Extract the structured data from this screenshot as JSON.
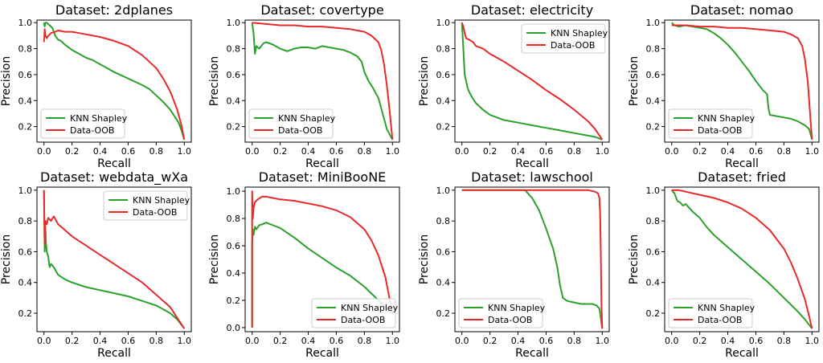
{
  "chart_data": [
    {
      "type": "line",
      "title": "Dataset: 2dplanes",
      "xlabel": "Recall",
      "ylabel": "Precision",
      "xlim": [
        -0.05,
        1.05
      ],
      "ylim": [
        0.08,
        1.02
      ],
      "xticks": [
        0.0,
        0.2,
        0.4,
        0.6,
        0.8,
        1.0
      ],
      "yticks": [
        0.2,
        0.4,
        0.6,
        0.8,
        1.0
      ],
      "legend_position": "lower-left",
      "grid": false,
      "series": [
        {
          "name": "KNN Shapley",
          "color": "#2ca02c",
          "x": [
            0.0,
            0.005,
            0.01,
            0.02,
            0.04,
            0.06,
            0.08,
            0.1,
            0.12,
            0.15,
            0.2,
            0.25,
            0.3,
            0.35,
            0.4,
            0.5,
            0.6,
            0.7,
            0.75,
            0.8,
            0.85,
            0.9,
            0.93,
            0.96,
            0.98,
            1.0
          ],
          "y": [
            1.0,
            0.97,
            1.0,
            1.0,
            0.98,
            0.96,
            0.9,
            0.87,
            0.86,
            0.83,
            0.79,
            0.76,
            0.73,
            0.71,
            0.68,
            0.62,
            0.57,
            0.52,
            0.49,
            0.44,
            0.39,
            0.33,
            0.28,
            0.23,
            0.17,
            0.1
          ]
        },
        {
          "name": "Data-OOB",
          "color": "#e8292a",
          "x": [
            0.0,
            0.005,
            0.01,
            0.02,
            0.03,
            0.05,
            0.08,
            0.1,
            0.15,
            0.2,
            0.25,
            0.3,
            0.4,
            0.5,
            0.6,
            0.7,
            0.8,
            0.85,
            0.9,
            0.95,
            0.98,
            1.0
          ],
          "y": [
            0.85,
            0.95,
            0.9,
            0.88,
            0.9,
            0.92,
            0.93,
            0.94,
            0.93,
            0.93,
            0.92,
            0.91,
            0.89,
            0.86,
            0.82,
            0.75,
            0.65,
            0.57,
            0.47,
            0.33,
            0.21,
            0.1
          ]
        }
      ]
    },
    {
      "type": "line",
      "title": "Dataset: covertype",
      "xlabel": "Recall",
      "ylabel": "Precision",
      "xlim": [
        -0.05,
        1.05
      ],
      "ylim": [
        0.08,
        1.02
      ],
      "xticks": [
        0.0,
        0.2,
        0.4,
        0.6,
        0.8,
        1.0
      ],
      "yticks": [
        0.2,
        0.4,
        0.6,
        0.8,
        1.0
      ],
      "legend_position": "lower-left",
      "grid": false,
      "series": [
        {
          "name": "KNN Shapley",
          "color": "#2ca02c",
          "x": [
            0.0,
            0.01,
            0.02,
            0.03,
            0.05,
            0.08,
            0.1,
            0.15,
            0.2,
            0.25,
            0.3,
            0.35,
            0.4,
            0.45,
            0.5,
            0.55,
            0.6,
            0.65,
            0.7,
            0.75,
            0.78,
            0.8,
            0.83,
            0.86,
            0.9,
            0.93,
            0.96,
            0.98,
            1.0
          ],
          "y": [
            1.0,
            0.92,
            0.76,
            0.82,
            0.8,
            0.84,
            0.85,
            0.83,
            0.8,
            0.78,
            0.8,
            0.81,
            0.81,
            0.8,
            0.82,
            0.81,
            0.8,
            0.79,
            0.77,
            0.74,
            0.7,
            0.62,
            0.55,
            0.5,
            0.42,
            0.3,
            0.18,
            0.14,
            0.1
          ]
        },
        {
          "name": "Data-OOB",
          "color": "#e8292a",
          "x": [
            0.0,
            0.1,
            0.2,
            0.3,
            0.4,
            0.5,
            0.6,
            0.7,
            0.8,
            0.85,
            0.9,
            0.92,
            0.94,
            0.96,
            0.98,
            1.0
          ],
          "y": [
            1.0,
            0.99,
            0.98,
            0.98,
            0.97,
            0.97,
            0.96,
            0.95,
            0.93,
            0.9,
            0.85,
            0.79,
            0.68,
            0.52,
            0.32,
            0.1
          ]
        }
      ]
    },
    {
      "type": "line",
      "title": "Dataset: electricity",
      "xlabel": "Recall",
      "ylabel": "Precision",
      "xlim": [
        -0.05,
        1.05
      ],
      "ylim": [
        0.08,
        1.02
      ],
      "xticks": [
        0.0,
        0.2,
        0.4,
        0.6,
        0.8,
        1.0
      ],
      "yticks": [
        0.2,
        0.4,
        0.6,
        0.8,
        1.0
      ],
      "legend_position": "upper-right",
      "grid": false,
      "series": [
        {
          "name": "KNN Shapley",
          "color": "#2ca02c",
          "x": [
            0.0,
            0.005,
            0.01,
            0.015,
            0.02,
            0.03,
            0.04,
            0.05,
            0.07,
            0.1,
            0.15,
            0.2,
            0.25,
            0.3,
            0.4,
            0.5,
            0.6,
            0.7,
            0.8,
            0.9,
            0.95,
            1.0
          ],
          "y": [
            1.0,
            0.9,
            0.8,
            0.7,
            0.6,
            0.55,
            0.5,
            0.47,
            0.43,
            0.38,
            0.33,
            0.29,
            0.27,
            0.25,
            0.23,
            0.21,
            0.19,
            0.17,
            0.15,
            0.13,
            0.12,
            0.1
          ]
        },
        {
          "name": "Data-OOB",
          "color": "#e8292a",
          "x": [
            0.0,
            0.01,
            0.02,
            0.03,
            0.05,
            0.08,
            0.1,
            0.15,
            0.2,
            0.3,
            0.4,
            0.5,
            0.6,
            0.7,
            0.8,
            0.9,
            0.95,
            1.0
          ],
          "y": [
            1.0,
            0.97,
            0.92,
            0.88,
            0.87,
            0.85,
            0.82,
            0.8,
            0.76,
            0.7,
            0.63,
            0.56,
            0.48,
            0.41,
            0.33,
            0.24,
            0.18,
            0.1
          ]
        }
      ]
    },
    {
      "type": "line",
      "title": "Dataset: nomao",
      "xlabel": "Recall",
      "ylabel": "Precision",
      "xlim": [
        -0.05,
        1.05
      ],
      "ylim": [
        0.08,
        1.02
      ],
      "xticks": [
        0.0,
        0.2,
        0.4,
        0.6,
        0.8,
        1.0
      ],
      "yticks": [
        0.2,
        0.4,
        0.6,
        0.8,
        1.0
      ],
      "legend_position": "lower-left",
      "grid": false,
      "series": [
        {
          "name": "KNN Shapley",
          "color": "#2ca02c",
          "x": [
            0.0,
            0.02,
            0.05,
            0.1,
            0.15,
            0.2,
            0.25,
            0.3,
            0.35,
            0.4,
            0.45,
            0.5,
            0.55,
            0.6,
            0.65,
            0.68,
            0.69,
            0.7,
            0.75,
            0.8,
            0.85,
            0.9,
            0.95,
            0.98,
            1.0
          ],
          "y": [
            1.0,
            0.98,
            0.97,
            0.98,
            0.97,
            0.96,
            0.95,
            0.92,
            0.88,
            0.83,
            0.77,
            0.7,
            0.63,
            0.55,
            0.48,
            0.45,
            0.34,
            0.29,
            0.28,
            0.27,
            0.26,
            0.24,
            0.21,
            0.18,
            0.1
          ]
        },
        {
          "name": "Data-OOB",
          "color": "#e8292a",
          "x": [
            0.0,
            0.05,
            0.1,
            0.2,
            0.3,
            0.4,
            0.5,
            0.6,
            0.7,
            0.8,
            0.85,
            0.9,
            0.93,
            0.95,
            0.97,
            0.98,
            0.99,
            1.0
          ],
          "y": [
            0.98,
            0.98,
            0.98,
            0.97,
            0.97,
            0.96,
            0.96,
            0.95,
            0.94,
            0.93,
            0.91,
            0.88,
            0.82,
            0.72,
            0.55,
            0.4,
            0.25,
            0.1
          ]
        }
      ]
    },
    {
      "type": "line",
      "title": "Dataset: webdata_wXa",
      "xlabel": "Recall",
      "ylabel": "Precision",
      "xlim": [
        -0.05,
        1.05
      ],
      "ylim": [
        0.08,
        1.02
      ],
      "xticks": [
        0.0,
        0.2,
        0.4,
        0.6,
        0.8,
        1.0
      ],
      "yticks": [
        0.2,
        0.4,
        0.6,
        0.8,
        1.0
      ],
      "legend_position": "upper-right",
      "grid": false,
      "series": [
        {
          "name": "KNN Shapley",
          "color": "#2ca02c",
          "x": [
            0.0,
            0.005,
            0.01,
            0.015,
            0.02,
            0.03,
            0.04,
            0.05,
            0.07,
            0.1,
            0.15,
            0.2,
            0.3,
            0.4,
            0.5,
            0.6,
            0.7,
            0.8,
            0.9,
            0.95,
            1.0
          ],
          "y": [
            1.0,
            0.6,
            0.75,
            0.65,
            0.6,
            0.57,
            0.5,
            0.52,
            0.5,
            0.45,
            0.42,
            0.4,
            0.37,
            0.35,
            0.33,
            0.31,
            0.28,
            0.25,
            0.2,
            0.16,
            0.1
          ]
        },
        {
          "name": "Data-OOB",
          "color": "#e8292a",
          "x": [
            0.0,
            0.005,
            0.01,
            0.02,
            0.03,
            0.05,
            0.07,
            0.1,
            0.15,
            0.2,
            0.3,
            0.4,
            0.5,
            0.6,
            0.7,
            0.8,
            0.9,
            0.95,
            1.0
          ],
          "y": [
            1.0,
            0.65,
            0.8,
            0.78,
            0.82,
            0.8,
            0.83,
            0.78,
            0.74,
            0.7,
            0.64,
            0.58,
            0.52,
            0.46,
            0.4,
            0.32,
            0.24,
            0.17,
            0.1
          ]
        }
      ]
    },
    {
      "type": "line",
      "title": "Dataset: MiniBooNE",
      "xlabel": "Recall",
      "ylabel": "Precision",
      "xlim": [
        -0.05,
        1.05
      ],
      "ylim": [
        -0.03,
        1.03
      ],
      "xticks": [
        0.0,
        0.2,
        0.4,
        0.6,
        0.8,
        1.0
      ],
      "yticks": [
        0.0,
        0.2,
        0.4,
        0.6,
        0.8,
        1.0
      ],
      "legend_position": "lower-right",
      "grid": false,
      "series": [
        {
          "name": "KNN Shapley",
          "color": "#2ca02c",
          "x": [
            0.0,
            0.0,
            0.005,
            0.01,
            0.02,
            0.03,
            0.05,
            0.08,
            0.1,
            0.15,
            0.2,
            0.3,
            0.4,
            0.5,
            0.6,
            0.7,
            0.8,
            0.9,
            1.0
          ],
          "y": [
            0.0,
            0.6,
            0.72,
            0.68,
            0.74,
            0.72,
            0.75,
            0.76,
            0.77,
            0.75,
            0.73,
            0.66,
            0.58,
            0.51,
            0.44,
            0.38,
            0.3,
            0.2,
            0.1
          ]
        },
        {
          "name": "Data-OOB",
          "color": "#e8292a",
          "x": [
            0.0,
            0.0,
            0.005,
            0.01,
            0.02,
            0.04,
            0.07,
            0.1,
            0.15,
            0.2,
            0.3,
            0.4,
            0.5,
            0.6,
            0.7,
            0.8,
            0.85,
            0.9,
            0.95,
            1.0
          ],
          "y": [
            0.0,
            1.0,
            0.8,
            0.88,
            0.92,
            0.94,
            0.96,
            0.96,
            0.95,
            0.94,
            0.93,
            0.91,
            0.89,
            0.86,
            0.81,
            0.72,
            0.64,
            0.53,
            0.37,
            0.1
          ]
        }
      ]
    },
    {
      "type": "line",
      "title": "Dataset: lawschool",
      "xlabel": "Recall",
      "ylabel": "Precision",
      "xlim": [
        -0.05,
        1.05
      ],
      "ylim": [
        0.08,
        1.02
      ],
      "xticks": [
        0.0,
        0.2,
        0.4,
        0.6,
        0.8,
        1.0
      ],
      "yticks": [
        0.2,
        0.4,
        0.6,
        0.8,
        1.0
      ],
      "legend_position": "lower-left",
      "grid": false,
      "series": [
        {
          "name": "KNN Shapley",
          "color": "#2ca02c",
          "x": [
            0.0,
            0.2,
            0.4,
            0.45,
            0.5,
            0.55,
            0.6,
            0.65,
            0.68,
            0.7,
            0.72,
            0.75,
            0.8,
            0.85,
            0.9,
            0.93,
            0.96,
            0.98,
            1.0
          ],
          "y": [
            1.0,
            1.0,
            1.0,
            1.0,
            0.95,
            0.87,
            0.75,
            0.62,
            0.5,
            0.38,
            0.3,
            0.28,
            0.27,
            0.26,
            0.26,
            0.26,
            0.25,
            0.23,
            0.1
          ]
        },
        {
          "name": "Data-OOB",
          "color": "#e8292a",
          "x": [
            0.0,
            0.3,
            0.6,
            0.8,
            0.9,
            0.95,
            0.97,
            0.98,
            0.985,
            0.99,
            0.995,
            1.0
          ],
          "y": [
            1.0,
            1.0,
            1.0,
            1.0,
            1.0,
            0.99,
            0.98,
            0.95,
            0.85,
            0.6,
            0.25,
            0.1
          ]
        }
      ]
    },
    {
      "type": "line",
      "title": "Dataset: fried",
      "xlabel": "Recall",
      "ylabel": "Precision",
      "xlim": [
        -0.05,
        1.05
      ],
      "ylim": [
        0.08,
        1.02
      ],
      "xticks": [
        0.0,
        0.2,
        0.4,
        0.6,
        0.8,
        1.0
      ],
      "yticks": [
        0.2,
        0.4,
        0.6,
        0.8,
        1.0
      ],
      "legend_position": "lower-left",
      "grid": false,
      "series": [
        {
          "name": "KNN Shapley",
          "color": "#2ca02c",
          "x": [
            0.0,
            0.02,
            0.04,
            0.06,
            0.08,
            0.1,
            0.15,
            0.2,
            0.25,
            0.3,
            0.4,
            0.5,
            0.6,
            0.7,
            0.8,
            0.9,
            0.95,
            1.0
          ],
          "y": [
            1.0,
            0.98,
            0.93,
            0.92,
            0.9,
            0.91,
            0.86,
            0.82,
            0.76,
            0.71,
            0.63,
            0.55,
            0.47,
            0.39,
            0.3,
            0.21,
            0.16,
            0.1
          ]
        },
        {
          "name": "Data-OOB",
          "color": "#e8292a",
          "x": [
            0.0,
            0.05,
            0.1,
            0.15,
            0.2,
            0.25,
            0.3,
            0.4,
            0.5,
            0.6,
            0.7,
            0.8,
            0.85,
            0.9,
            0.95,
            0.98,
            1.0
          ],
          "y": [
            1.0,
            1.0,
            0.99,
            0.98,
            0.97,
            0.96,
            0.95,
            0.92,
            0.88,
            0.82,
            0.74,
            0.62,
            0.53,
            0.42,
            0.29,
            0.18,
            0.1
          ]
        }
      ]
    }
  ]
}
